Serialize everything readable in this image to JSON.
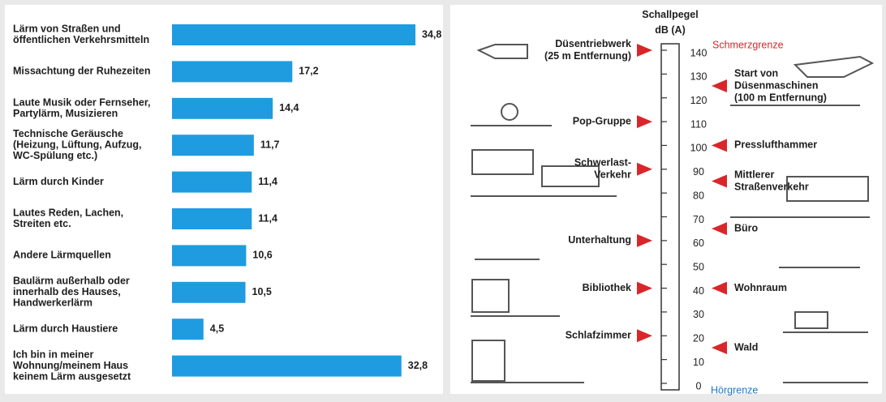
{
  "chart_data": [
    {
      "type": "bar",
      "color": "#1f9be0",
      "categories": [
        [
          "Lärm von Straßen und",
          "öffentlichen Verkehrsmitteln"
        ],
        [
          "Missachtung der Ruhezeiten"
        ],
        [
          "Laute Musik oder Fernseher,",
          "Partylärm, Musizieren"
        ],
        [
          "Technische Geräusche",
          "(Heizung, Lüftung, Aufzug,",
          "WC-Spülung etc.)"
        ],
        [
          "Lärm durch Kinder"
        ],
        [
          "Lautes Reden, Lachen,",
          "Streiten etc."
        ],
        [
          "Andere Lärmquellen"
        ],
        [
          "Baulärm außerhalb oder",
          "innerhalb des Hauses,",
          "Handwerkerlärm"
        ],
        [
          "Lärm durch Haustiere"
        ],
        [
          "Ich bin in meiner",
          "Wohnung/meinem Haus",
          "keinem Lärm ausgesetzt"
        ]
      ],
      "values": [
        34.8,
        17.2,
        14.4,
        11.7,
        11.4,
        11.4,
        10.6,
        10.5,
        4.5,
        32.8
      ],
      "value_labels": [
        "34,8",
        "17,2",
        "14,4",
        "11,7",
        "11,4",
        "11,4",
        "10,6",
        "10,5",
        "4,5",
        "32,8"
      ]
    },
    {
      "type": "scale",
      "title": [
        "Schallpegel",
        "dB (A)"
      ],
      "ylim": [
        0,
        140
      ],
      "yticks": [
        0,
        10,
        20,
        30,
        40,
        50,
        60,
        70,
        80,
        90,
        100,
        110,
        120,
        130,
        140
      ],
      "top_label": "Schmerzgrenze",
      "top_color": "#d9262b",
      "bottom_label": "Hörgrenze",
      "bottom_color": "#1f78c8",
      "arrow_color": "#d9262b",
      "markers": [
        {
          "label": [
            "Düsentriebwerk",
            "(25 m Entfernung)"
          ],
          "value": 140,
          "side": "left"
        },
        {
          "label": [
            "Start von",
            "Düsenmaschinen",
            "(100 m Entfernung)"
          ],
          "value": 125,
          "side": "right"
        },
        {
          "label": [
            "Pop-Gruppe"
          ],
          "value": 110,
          "side": "left"
        },
        {
          "label": [
            "Presslufthammer"
          ],
          "value": 100,
          "side": "right"
        },
        {
          "label": [
            "Schwerlast-",
            "Verkehr"
          ],
          "value": 90,
          "side": "left"
        },
        {
          "label": [
            "Mittlerer",
            "Straßenverkehr"
          ],
          "value": 85,
          "side": "right"
        },
        {
          "label": [
            "Büro"
          ],
          "value": 65,
          "side": "right"
        },
        {
          "label": [
            "Unterhaltung"
          ],
          "value": 60,
          "side": "left"
        },
        {
          "label": [
            "Bibliothek"
          ],
          "value": 40,
          "side": "left"
        },
        {
          "label": [
            "Wohnraum"
          ],
          "value": 40,
          "side": "right"
        },
        {
          "label": [
            "Schlafzimmer"
          ],
          "value": 20,
          "side": "left"
        },
        {
          "label": [
            "Wald"
          ],
          "value": 15,
          "side": "right"
        }
      ]
    }
  ]
}
